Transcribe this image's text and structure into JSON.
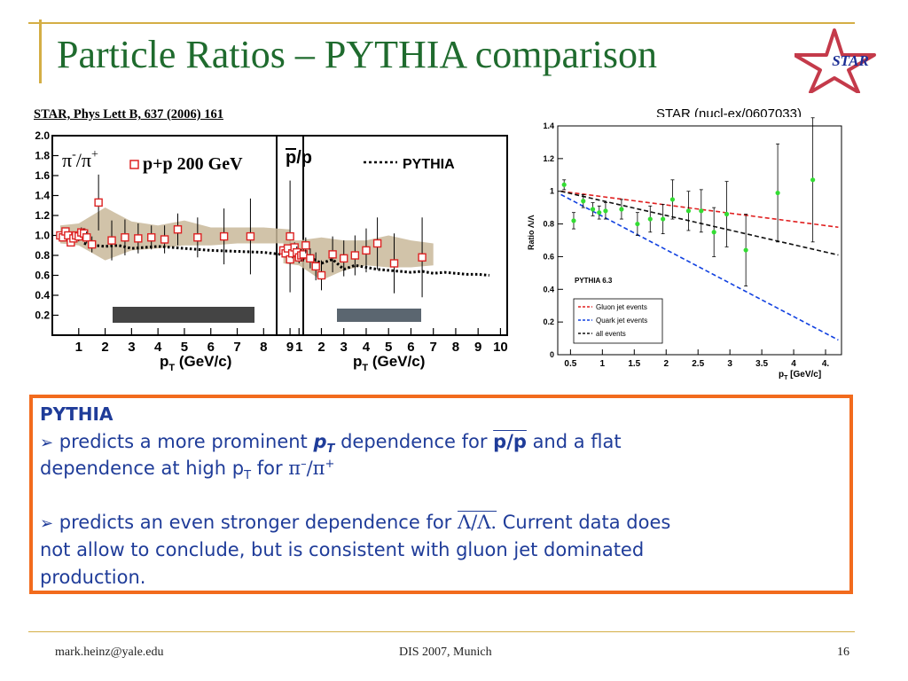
{
  "slide": {
    "title": "Particle Ratios – PYTHIA comparison",
    "logo_text": "STAR",
    "ref_left": "STAR, Phys Lett B, 637 (2006) 161",
    "ref_right": "STAR (nucl-ex/0607033)"
  },
  "textbox": {
    "heading": "PYTHIA",
    "bullet_symbol": "➢",
    "b1_pre": "predicts a more prominent ",
    "b1_pt_main": "p",
    "b1_pt_sub": "T",
    "b1_mid": " dependence for ",
    "b1_pbarp": "p/p",
    "b1_post": " and a flat",
    "b1_line2_pre": "dependence at high p",
    "b1_line2_sub": "T",
    "b1_line2_mid": " for ",
    "b1_pi1": "π",
    "b1_pi1_sup": "–",
    "b1_slash": "/",
    "b1_pi2": "π",
    "b1_pi2_sup": "+",
    "b2_pre": "predicts an even stronger dependence for ",
    "b2_lambda": "Λ/Λ.",
    "b2_post": " Current data does",
    "b2_line2": "not allow to conclude, but is consistent with gluon jet dominated",
    "b2_line3": "production."
  },
  "footer": {
    "email": "mark.heinz@yale.edu",
    "conference": "DIS 2007, Munich",
    "page": "16"
  },
  "chart_data": [
    {
      "type": "scatter",
      "panel": "left",
      "title": "",
      "xlabel": "pT (GeV/c)",
      "ylabel": "",
      "xlim": [
        0,
        9.5
      ],
      "ylim": [
        0,
        2.0
      ],
      "yticks": [
        "2.0",
        "1.8",
        "1.6",
        "1.4",
        "1.2",
        "1.0",
        "0.8",
        "0.6",
        "0.4",
        "0.2"
      ],
      "xticks": [
        "1",
        "2",
        "3",
        "4",
        "5",
        "6",
        "7",
        "8",
        "9"
      ],
      "panel_label": "π-/π+",
      "legend": [
        "p+p 200 GeV",
        "PYTHIA"
      ],
      "series": [
        {
          "name": "p+p 200 GeV",
          "x": [
            0.3,
            0.4,
            0.5,
            0.6,
            0.7,
            0.8,
            0.9,
            1.0,
            1.1,
            1.2,
            1.3,
            1.5,
            1.75,
            2.25,
            2.75,
            3.25,
            3.75,
            4.25,
            4.75,
            5.5,
            6.5,
            7.5,
            9.0
          ],
          "y": [
            1.0,
            0.98,
            1.04,
            1.0,
            0.93,
            0.97,
            1.0,
            0.99,
            1.03,
            1.02,
            0.98,
            0.91,
            1.33,
            0.95,
            0.98,
            0.97,
            0.98,
            0.96,
            1.06,
            0.98,
            0.99,
            0.99,
            0.99
          ],
          "err": [
            0.03,
            0.03,
            0.03,
            0.04,
            0.04,
            0.04,
            0.04,
            0.05,
            0.05,
            0.05,
            0.06,
            0.08,
            0.28,
            0.2,
            0.18,
            0.15,
            0.12,
            0.14,
            0.16,
            0.2,
            0.28,
            0.38,
            0.56
          ]
        },
        {
          "name": "PYTHIA",
          "x": [
            1.2,
            1.6,
            2.0,
            2.5,
            3.0,
            3.5,
            4.0,
            4.5,
            5.0,
            5.5,
            6.0,
            7.0,
            8.0,
            9.0
          ],
          "y": [
            0.92,
            0.9,
            0.89,
            0.9,
            0.87,
            0.88,
            0.89,
            0.88,
            0.87,
            0.86,
            0.85,
            0.84,
            0.83,
            0.8
          ]
        }
      ],
      "band": {
        "x": [
          0.3,
          1.0,
          2.0,
          3.0,
          4.0,
          5.0,
          6.0,
          7.0,
          8.0,
          9.0
        ],
        "lo": [
          0.92,
          0.9,
          0.75,
          0.85,
          0.87,
          0.9,
          0.9,
          0.92,
          0.92,
          0.92
        ],
        "hi": [
          1.1,
          1.12,
          1.28,
          1.14,
          1.1,
          1.15,
          1.08,
          1.08,
          1.08,
          1.06
        ]
      }
    },
    {
      "type": "scatter",
      "panel": "middle",
      "title": "",
      "xlabel": "pT (GeV/c)",
      "ylabel": "",
      "xlim": [
        0,
        10.3
      ],
      "ylim": [
        0,
        2.0
      ],
      "xticks": [
        "1",
        "2",
        "3",
        "4",
        "5",
        "6",
        "7",
        "8",
        "9",
        "10"
      ],
      "panel_label": "p/p",
      "series": [
        {
          "name": "p+p 200 GeV",
          "x": [
            0.3,
            0.4,
            0.5,
            0.6,
            0.7,
            0.8,
            0.9,
            1.0,
            1.1,
            1.2,
            1.3,
            1.5,
            1.75,
            2.0,
            2.5,
            3.0,
            3.5,
            4.0,
            4.5,
            5.25,
            6.5
          ],
          "y": [
            0.85,
            0.82,
            0.87,
            0.76,
            0.82,
            0.88,
            0.83,
            0.78,
            0.8,
            0.81,
            0.9,
            0.77,
            0.69,
            0.6,
            0.81,
            0.77,
            0.8,
            0.85,
            0.92,
            0.72,
            0.78
          ],
          "err": [
            0.04,
            0.04,
            0.04,
            0.05,
            0.05,
            0.05,
            0.06,
            0.06,
            0.06,
            0.07,
            0.08,
            0.1,
            0.14,
            0.15,
            0.18,
            0.18,
            0.2,
            0.22,
            0.26,
            0.3,
            0.4
          ]
        },
        {
          "name": "PYTHIA",
          "x": [
            1.0,
            1.5,
            2.0,
            2.5,
            3.0,
            3.5,
            4.0,
            4.5,
            5.0,
            5.5,
            6.0,
            6.5,
            7.0,
            7.5,
            8.0,
            8.5,
            9.0,
            9.5
          ],
          "y": [
            0.86,
            0.78,
            0.72,
            0.76,
            0.66,
            0.7,
            0.68,
            0.66,
            0.65,
            0.64,
            0.63,
            0.64,
            0.62,
            0.63,
            0.62,
            0.61,
            0.61,
            0.6
          ]
        }
      ],
      "band": {
        "x": [
          0.3,
          1.0,
          2.0,
          3.0,
          4.0,
          5.0,
          6.0,
          7.0
        ],
        "lo": [
          0.72,
          0.7,
          0.55,
          0.65,
          0.7,
          0.68,
          0.68,
          0.7
        ],
        "hi": [
          0.95,
          0.95,
          0.98,
          0.95,
          0.95,
          1.0,
          0.95,
          0.92
        ]
      }
    },
    {
      "type": "scatter",
      "panel": "right",
      "title": "",
      "xlabel": "pT [GeV/c]",
      "ylabel": "Ratio Λ/Λ",
      "xlim": [
        0.3,
        4.75
      ],
      "ylim": [
        0,
        1.4
      ],
      "yticks": [
        "1.4",
        "1.2",
        "1",
        "0.8",
        "0.6",
        "0.4",
        "0.2",
        "0"
      ],
      "xticks": [
        "0.5",
        "1",
        "1.5",
        "2",
        "2.5",
        "3",
        "3.5",
        "4",
        "4."
      ],
      "annotation": "PYTHIA 6.3",
      "legend": [
        "Gluon jet events",
        "Quark jet events",
        "all events"
      ],
      "colors": {
        "data": "#33dd33",
        "gluon": "#e02020",
        "quark": "#1040e0",
        "all": "#111111"
      },
      "series": [
        {
          "name": "data",
          "x": [
            0.4,
            0.55,
            0.7,
            0.85,
            0.95,
            1.05,
            1.3,
            1.55,
            1.75,
            1.95,
            2.1,
            2.35,
            2.55,
            2.75,
            2.95,
            3.25,
            3.75,
            4.3
          ],
          "y": [
            1.04,
            0.82,
            0.94,
            0.89,
            0.87,
            0.88,
            0.89,
            0.8,
            0.83,
            0.83,
            0.95,
            0.88,
            0.88,
            0.75,
            0.86,
            0.64,
            0.99,
            1.07
          ],
          "err": [
            0.03,
            0.05,
            0.04,
            0.04,
            0.04,
            0.05,
            0.06,
            0.07,
            0.08,
            0.09,
            0.12,
            0.12,
            0.13,
            0.15,
            0.2,
            0.22,
            0.3,
            0.38
          ]
        },
        {
          "name": "Gluon jet events",
          "x": [
            0.35,
            4.7
          ],
          "y": [
            1.0,
            0.78
          ]
        },
        {
          "name": "Quark jet events",
          "x": [
            0.35,
            4.7
          ],
          "y": [
            0.98,
            0.09
          ]
        },
        {
          "name": "all events",
          "x": [
            0.35,
            4.7
          ],
          "y": [
            1.0,
            0.61
          ]
        }
      ]
    }
  ]
}
